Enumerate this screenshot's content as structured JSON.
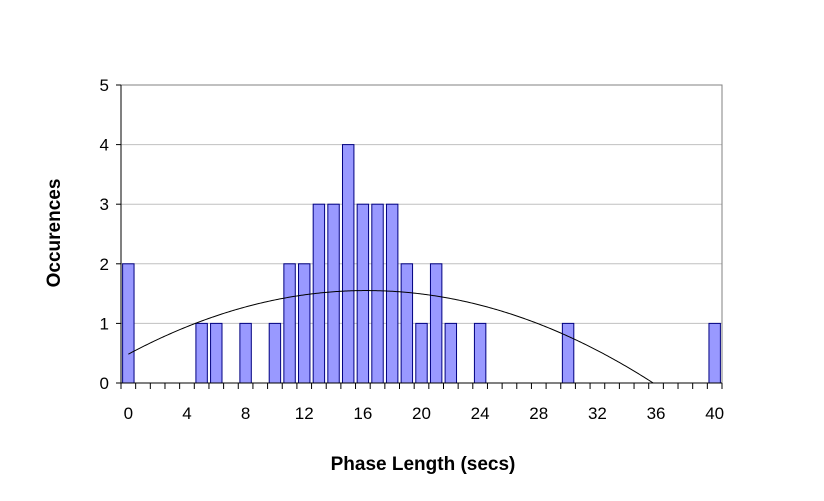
{
  "chart_data": {
    "type": "bar",
    "title": "",
    "xlabel": "Phase Length (secs)",
    "ylabel": "Occurences",
    "x": [
      0,
      1,
      2,
      3,
      4,
      5,
      6,
      7,
      8,
      9,
      10,
      11,
      12,
      13,
      14,
      15,
      16,
      17,
      18,
      19,
      20,
      21,
      22,
      23,
      24,
      25,
      26,
      27,
      28,
      29,
      30,
      31,
      32,
      33,
      34,
      35,
      36,
      37,
      38,
      39,
      40
    ],
    "values": [
      2,
      0,
      0,
      0,
      0,
      1,
      1,
      0,
      1,
      0,
      1,
      2,
      2,
      3,
      3,
      4,
      3,
      3,
      3,
      2,
      1,
      2,
      1,
      0,
      1,
      0,
      0,
      0,
      0,
      0,
      1,
      0,
      0,
      0,
      0,
      0,
      0,
      0,
      0,
      0,
      1
    ],
    "xlim": [
      0,
      40
    ],
    "ylim": [
      0,
      5
    ],
    "xticks": [
      "0",
      "4",
      "8",
      "12",
      "16",
      "20",
      "24",
      "28",
      "32",
      "36",
      "40"
    ],
    "yticks": [
      "0",
      "1",
      "2",
      "3",
      "4",
      "5"
    ],
    "trendline": {
      "type": "polynomial",
      "order": 2
    },
    "grid": true,
    "legend": "none",
    "colors": {
      "bar_fill": "#9999ff",
      "bar_edge": "#000080",
      "grid": "#c0c0c0",
      "trendline": "#000000"
    }
  }
}
